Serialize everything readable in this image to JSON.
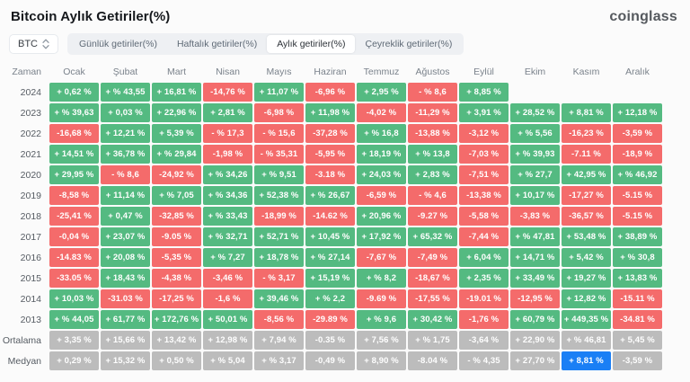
{
  "page": {
    "title": "Bitcoin Aylık Getiriler(%)",
    "logo": "coinglass"
  },
  "toolbar": {
    "coin": "BTC",
    "tabs": [
      {
        "label": "Günlük getiriler(%)",
        "active": false
      },
      {
        "label": "Haftalık getiriler(%)",
        "active": false
      },
      {
        "label": "Aylık getiriler(%)",
        "active": true
      },
      {
        "label": "Çeyreklik getiriler(%)",
        "active": false
      }
    ]
  },
  "colors": {
    "positive": "#54ba81",
    "negative": "#f46b6b",
    "aggregate": "#bcbcbc",
    "highlight": "#1a7ff5"
  },
  "chart_data": {
    "type": "table",
    "title": "Bitcoin Aylık Getiriler(%)",
    "columns": [
      "Zaman",
      "Ocak",
      "Şubat",
      "Mart",
      "Nisan",
      "Mayıs",
      "Haziran",
      "Temmuz",
      "Ağustos",
      "Eylül",
      "Ekim",
      "Kasım",
      "Aralık"
    ],
    "rows": [
      {
        "label": "2024",
        "cells": [
          [
            "+ 0,62 %",
            "g"
          ],
          [
            "+ % 43,55",
            "g"
          ],
          [
            "+ 16,81 %",
            "g"
          ],
          [
            "-14,76 %",
            "r"
          ],
          [
            "+ 11,07 %",
            "g"
          ],
          [
            "-6,96 %",
            "r"
          ],
          [
            "+ 2,95 %",
            "g"
          ],
          [
            "- % 8,6",
            "r"
          ],
          [
            "+ 8,85 %",
            "g"
          ],
          [
            "",
            "e"
          ],
          [
            "",
            "e"
          ],
          [
            "",
            "e"
          ]
        ]
      },
      {
        "label": "2023",
        "cells": [
          [
            "+ % 39,63",
            "g"
          ],
          [
            "+ 0,03 %",
            "g"
          ],
          [
            "+ 22,96 %",
            "g"
          ],
          [
            "+ 2,81 %",
            "g"
          ],
          [
            "-6,98 %",
            "r"
          ],
          [
            "+ 11,98 %",
            "g"
          ],
          [
            "-4,02 %",
            "r"
          ],
          [
            "-11,29 %",
            "r"
          ],
          [
            "+ 3,91 %",
            "g"
          ],
          [
            "+ 28,52 %",
            "g"
          ],
          [
            "+ 8,81 %",
            "g"
          ],
          [
            "+ 12,18 %",
            "g"
          ]
        ]
      },
      {
        "label": "2022",
        "cells": [
          [
            "-16,68 %",
            "r"
          ],
          [
            "+ 12,21 %",
            "g"
          ],
          [
            "+ 5,39 %",
            "g"
          ],
          [
            "- % 17,3",
            "r"
          ],
          [
            "- % 15,6",
            "r"
          ],
          [
            "-37,28 %",
            "r"
          ],
          [
            "+ % 16,8",
            "g"
          ],
          [
            "-13,88 %",
            "r"
          ],
          [
            "-3,12 %",
            "r"
          ],
          [
            "+ % 5,56",
            "g"
          ],
          [
            "-16,23 %",
            "r"
          ],
          [
            "-3,59 %",
            "r"
          ]
        ]
      },
      {
        "label": "2021",
        "cells": [
          [
            "+ 14,51 %",
            "g"
          ],
          [
            "+ 36,78 %",
            "g"
          ],
          [
            "+ % 29,84",
            "g"
          ],
          [
            "-1,98 %",
            "r"
          ],
          [
            "- % 35,31",
            "r"
          ],
          [
            "-5,95 %",
            "r"
          ],
          [
            "+ 18,19 %",
            "g"
          ],
          [
            "+ % 13,8",
            "g"
          ],
          [
            "-7,03 %",
            "r"
          ],
          [
            "+ % 39,93",
            "g"
          ],
          [
            "-7.11 %",
            "r"
          ],
          [
            "-18,9 %",
            "r"
          ]
        ]
      },
      {
        "label": "2020",
        "cells": [
          [
            "+ 29,95 %",
            "g"
          ],
          [
            "- % 8,6",
            "r"
          ],
          [
            "-24,92 %",
            "r"
          ],
          [
            "+ % 34,26",
            "g"
          ],
          [
            "+ % 9,51",
            "g"
          ],
          [
            "-3.18 %",
            "r"
          ],
          [
            "+ 24,03 %",
            "g"
          ],
          [
            "+ 2,83 %",
            "g"
          ],
          [
            "-7,51 %",
            "r"
          ],
          [
            "+ % 27,7",
            "g"
          ],
          [
            "+ 42,95 %",
            "g"
          ],
          [
            "+ % 46,92",
            "g"
          ]
        ]
      },
      {
        "label": "2019",
        "cells": [
          [
            "-8,58 %",
            "r"
          ],
          [
            "+ 11,14 %",
            "g"
          ],
          [
            "+ % 7,05",
            "g"
          ],
          [
            "+ % 34,36",
            "g"
          ],
          [
            "+ 52,38 %",
            "g"
          ],
          [
            "+ % 26,67",
            "g"
          ],
          [
            "-6,59 %",
            "r"
          ],
          [
            "- % 4,6",
            "r"
          ],
          [
            "-13,38 %",
            "r"
          ],
          [
            "+ 10,17 %",
            "g"
          ],
          [
            "-17,27 %",
            "r"
          ],
          [
            "-5.15 %",
            "r"
          ]
        ]
      },
      {
        "label": "2018",
        "cells": [
          [
            "-25,41 %",
            "r"
          ],
          [
            "+ 0,47 %",
            "g"
          ],
          [
            "-32,85 %",
            "r"
          ],
          [
            "+ % 33,43",
            "g"
          ],
          [
            "-18,99 %",
            "r"
          ],
          [
            "-14.62 %",
            "r"
          ],
          [
            "+ 20,96 %",
            "g"
          ],
          [
            "-9.27 %",
            "r"
          ],
          [
            "-5,58 %",
            "r"
          ],
          [
            "-3,83 %",
            "r"
          ],
          [
            "-36,57 %",
            "r"
          ],
          [
            "-5.15 %",
            "r"
          ]
        ]
      },
      {
        "label": "2017",
        "cells": [
          [
            "-0,04 %",
            "r"
          ],
          [
            "+ 23,07 %",
            "g"
          ],
          [
            "-9.05 %",
            "r"
          ],
          [
            "+ % 32,71",
            "g"
          ],
          [
            "+ 52,71 %",
            "g"
          ],
          [
            "+ 10,45 %",
            "g"
          ],
          [
            "+ 17,92 %",
            "g"
          ],
          [
            "+ 65,32 %",
            "g"
          ],
          [
            "-7,44 %",
            "r"
          ],
          [
            "+ % 47,81",
            "g"
          ],
          [
            "+ 53,48 %",
            "g"
          ],
          [
            "+ 38,89 %",
            "g"
          ]
        ]
      },
      {
        "label": "2016",
        "cells": [
          [
            "-14.83 %",
            "r"
          ],
          [
            "+ 20,08 %",
            "g"
          ],
          [
            "-5,35 %",
            "r"
          ],
          [
            "+ % 7,27",
            "g"
          ],
          [
            "+ 18,78 %",
            "g"
          ],
          [
            "+ % 27,14",
            "g"
          ],
          [
            "-7,67 %",
            "r"
          ],
          [
            "-7,49 %",
            "r"
          ],
          [
            "+ 6,04 %",
            "g"
          ],
          [
            "+ 14,71 %",
            "g"
          ],
          [
            "+ 5,42 %",
            "g"
          ],
          [
            "+ % 30,8",
            "g"
          ]
        ]
      },
      {
        "label": "2015",
        "cells": [
          [
            "-33.05 %",
            "r"
          ],
          [
            "+ 18,43 %",
            "g"
          ],
          [
            "-4,38 %",
            "r"
          ],
          [
            "-3,46 %",
            "r"
          ],
          [
            "- % 3,17",
            "r"
          ],
          [
            "+ 15,19 %",
            "g"
          ],
          [
            "+ % 8,2",
            "g"
          ],
          [
            "-18,67 %",
            "r"
          ],
          [
            "+ 2,35 %",
            "g"
          ],
          [
            "+ 33,49 %",
            "g"
          ],
          [
            "+ 19,27 %",
            "g"
          ],
          [
            "+ 13,83 %",
            "g"
          ]
        ]
      },
      {
        "label": "2014",
        "cells": [
          [
            "+ 10,03 %",
            "g"
          ],
          [
            "-31.03 %",
            "r"
          ],
          [
            "-17,25 %",
            "r"
          ],
          [
            "-1,6 %",
            "r"
          ],
          [
            "+ 39,46 %",
            "g"
          ],
          [
            "+ % 2,2",
            "g"
          ],
          [
            "-9.69 %",
            "r"
          ],
          [
            "-17,55 %",
            "r"
          ],
          [
            "-19.01 %",
            "r"
          ],
          [
            "-12,95 %",
            "r"
          ],
          [
            "+ 12,82 %",
            "g"
          ],
          [
            "-15.11 %",
            "r"
          ]
        ]
      },
      {
        "label": "2013",
        "cells": [
          [
            "+ % 44,05",
            "g"
          ],
          [
            "+ 61,77 %",
            "g"
          ],
          [
            "+ 172,76 %",
            "g"
          ],
          [
            "+ 50,01 %",
            "g"
          ],
          [
            "-8,56 %",
            "r"
          ],
          [
            "-29.89 %",
            "r"
          ],
          [
            "+ % 9,6",
            "g"
          ],
          [
            "+ 30,42 %",
            "g"
          ],
          [
            "-1,76 %",
            "r"
          ],
          [
            "+ 60,79 %",
            "g"
          ],
          [
            "+ 449,35 %",
            "g"
          ],
          [
            "-34.81 %",
            "r"
          ]
        ]
      },
      {
        "label": "Ortalama",
        "cells": [
          [
            "+ 3,35 %",
            "gy"
          ],
          [
            "+ 15,66 %",
            "gy"
          ],
          [
            "+ 13,42 %",
            "gy"
          ],
          [
            "+ 12,98 %",
            "gy"
          ],
          [
            "+ 7,94 %",
            "gy"
          ],
          [
            "-0.35 %",
            "gy"
          ],
          [
            "+ 7,56 %",
            "gy"
          ],
          [
            "+ % 1,75",
            "gy"
          ],
          [
            "-3,64 %",
            "gy"
          ],
          [
            "+ 22,90 %",
            "gy"
          ],
          [
            "+ % 46,81",
            "gy"
          ],
          [
            "+ 5,45 %",
            "gy"
          ]
        ]
      },
      {
        "label": "Medyan",
        "cells": [
          [
            "+ 0,29 %",
            "gy"
          ],
          [
            "+ 15,32 %",
            "gy"
          ],
          [
            "+ 0,50 %",
            "gy"
          ],
          [
            "+ % 5,04",
            "gy"
          ],
          [
            "+ % 3,17",
            "gy"
          ],
          [
            "-0,49 %",
            "gy"
          ],
          [
            "+ 8,90 %",
            "gy"
          ],
          [
            "-8.04 %",
            "gy"
          ],
          [
            "- % 4,35",
            "gy"
          ],
          [
            "+ 27,70 %",
            "gy"
          ],
          [
            "+ 8,81 %",
            "b"
          ],
          [
            "-3,59 %",
            "gy"
          ]
        ]
      }
    ]
  }
}
